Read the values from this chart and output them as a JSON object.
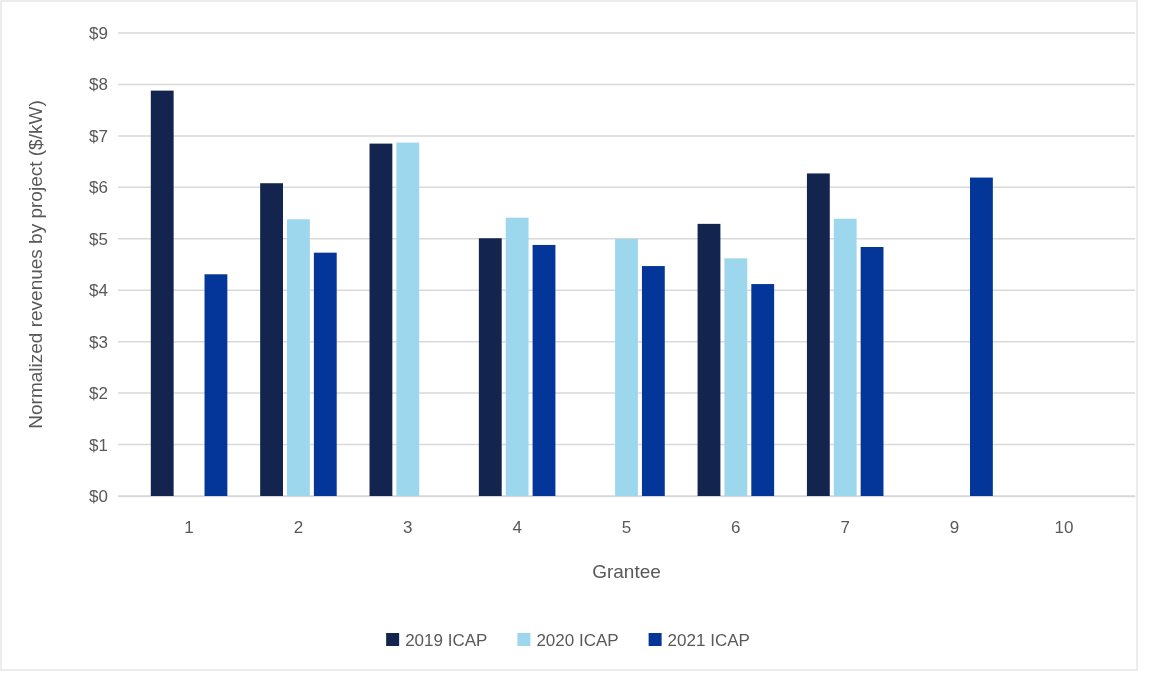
{
  "chart_data": {
    "type": "bar",
    "xlabel": "Grantee",
    "ylabel": "Normalized revenues by project ($/kW)",
    "categories": [
      "1",
      "2",
      "3",
      "4",
      "5",
      "6",
      "7",
      "9",
      "10"
    ],
    "series": [
      {
        "name": "2019 ICAP",
        "color": "#13244f",
        "values": [
          7.88,
          6.08,
          6.85,
          5.01,
          null,
          5.29,
          6.27,
          null,
          null
        ]
      },
      {
        "name": "2020 ICAP",
        "color": "#9dd7ee",
        "values": [
          null,
          5.38,
          6.87,
          5.41,
          5.0,
          4.62,
          5.39,
          null,
          null
        ]
      },
      {
        "name": "2021 ICAP",
        "color": "#04369a",
        "values": [
          4.31,
          4.73,
          null,
          4.88,
          4.47,
          4.12,
          4.84,
          6.19,
          null
        ]
      }
    ],
    "ylim": [
      0,
      9
    ],
    "yticks": [
      {
        "value": 0,
        "label": "$0"
      },
      {
        "value": 1,
        "label": "$1"
      },
      {
        "value": 2,
        "label": "$2"
      },
      {
        "value": 3,
        "label": "$3"
      },
      {
        "value": 4,
        "label": "$4"
      },
      {
        "value": 5,
        "label": "$5"
      },
      {
        "value": 6,
        "label": "$6"
      },
      {
        "value": 7,
        "label": "$7"
      },
      {
        "value": 8,
        "label": "$8"
      },
      {
        "value": 9,
        "label": "$9"
      }
    ],
    "grid": "y",
    "legend": "bottom"
  }
}
